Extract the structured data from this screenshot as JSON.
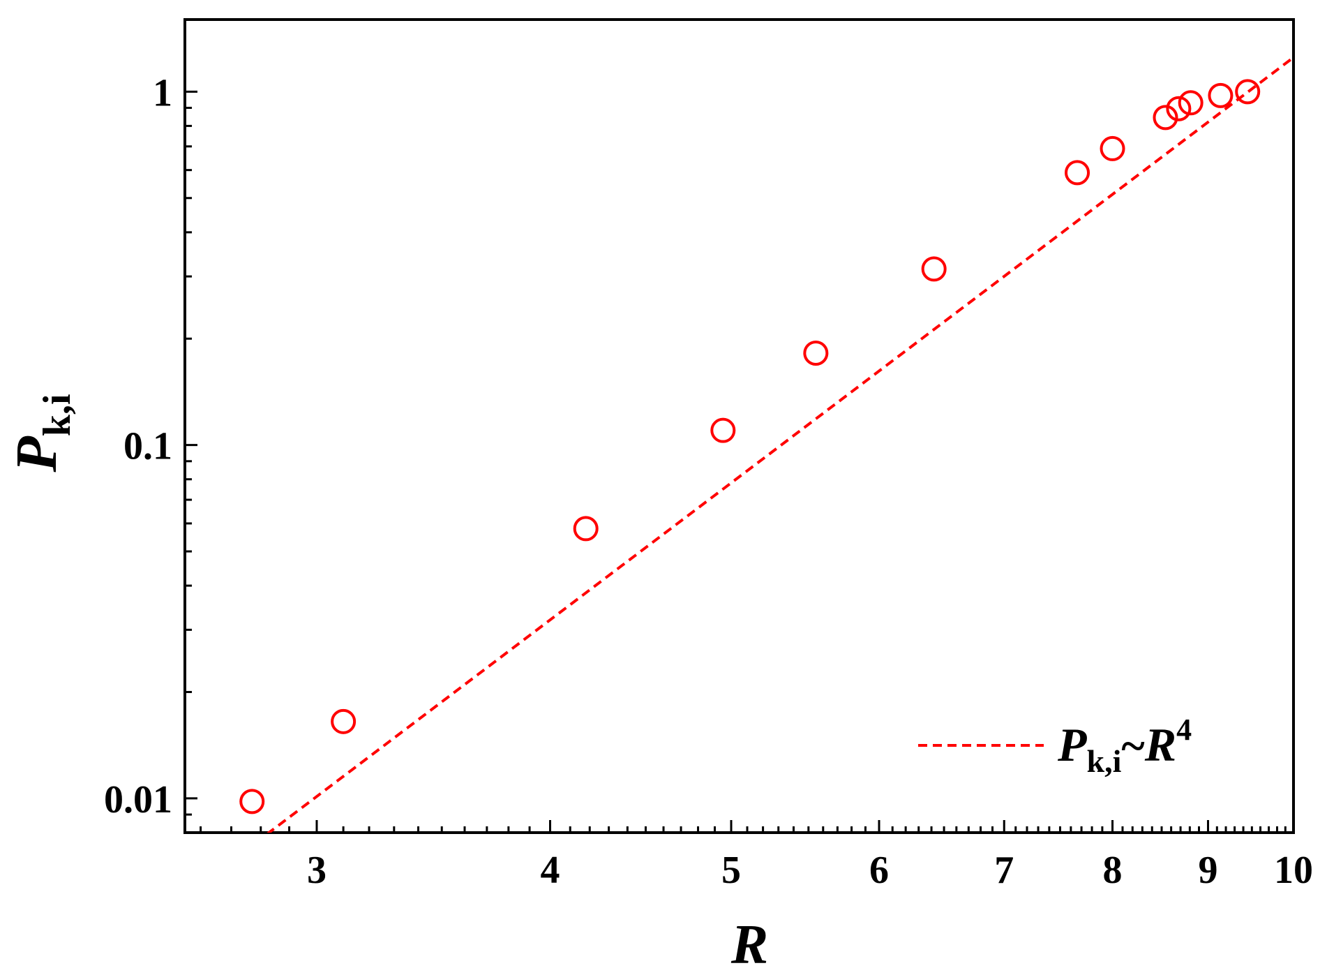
{
  "chart_data": {
    "type": "scatter",
    "title": "",
    "xlabel": "R",
    "ylabel": {
      "main": "P",
      "subscript": "k,i"
    },
    "x_scale": "log",
    "y_scale": "log",
    "xlim": [
      2.55,
      10
    ],
    "ylim": [
      0.008,
      1.6
    ],
    "x_ticks": [
      {
        "value": 3,
        "label": "3"
      },
      {
        "value": 4,
        "label": "4"
      },
      {
        "value": 5,
        "label": "5"
      },
      {
        "value": 6,
        "label": "6"
      },
      {
        "value": 7,
        "label": "7"
      },
      {
        "value": 8,
        "label": "8"
      },
      {
        "value": 9,
        "label": "9"
      },
      {
        "value": 10,
        "label": "10"
      }
    ],
    "y_ticks": [
      {
        "value": 0.01,
        "label": "0.01"
      },
      {
        "value": 0.1,
        "label": "0.1"
      },
      {
        "value": 1,
        "label": "1"
      }
    ],
    "grid": false,
    "series": [
      {
        "kind": "scatter",
        "marker": "open-circle",
        "color": "#ff0000",
        "x": [
          2.77,
          3.1,
          4.18,
          4.95,
          5.55,
          6.42,
          7.66,
          8.0,
          8.54,
          8.68,
          8.81,
          9.14,
          9.45
        ],
        "y": [
          0.0098,
          0.0165,
          0.058,
          0.11,
          0.182,
          0.315,
          0.59,
          0.69,
          0.845,
          0.895,
          0.93,
          0.975,
          1.0
        ]
      },
      {
        "kind": "line",
        "style": "dashed",
        "color": "#ff0000",
        "formula": "P = (R / 9.45)^4",
        "coefficient": 0.000125,
        "exponent": 4,
        "x_range": [
          2.55,
          10
        ],
        "legend": {
          "main": "P",
          "subscript": "k,i",
          "relation": "~",
          "var": "R",
          "power": "4"
        }
      }
    ],
    "legend_position": "bottom-right"
  }
}
